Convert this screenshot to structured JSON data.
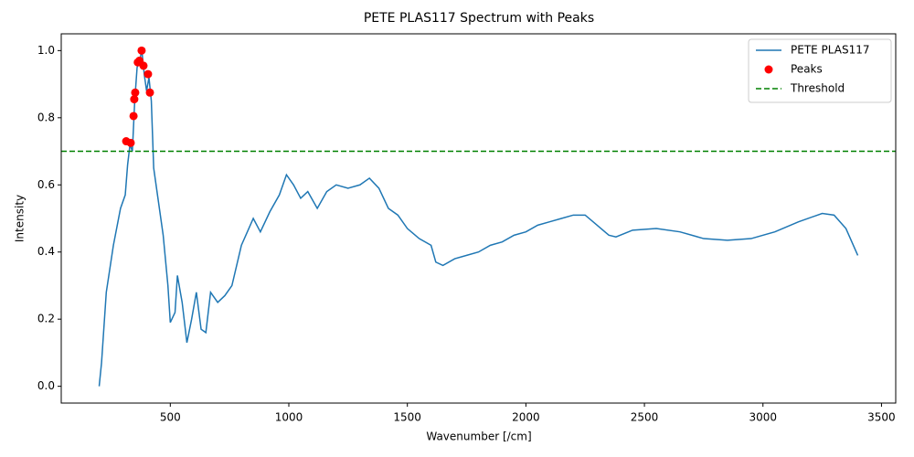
{
  "chart_data": {
    "type": "line",
    "title": "PETE PLAS117 Spectrum with Peaks",
    "xlabel": "Wavenumber [/cm]",
    "ylabel": "Intensity",
    "xlim": [
      40,
      3560
    ],
    "ylim": [
      -0.05,
      1.05
    ],
    "xticks": [
      500,
      1000,
      1500,
      2000,
      2500,
      3000,
      3500
    ],
    "yticks": [
      {
        "value": 0,
        "label": "0.0"
      },
      0.2,
      0.4,
      0.6,
      0.8,
      {
        "value": 1,
        "label": "1.0"
      }
    ],
    "legend": "upper right",
    "series": [
      {
        "name": "PETE PLAS117",
        "color": "#1f77b4",
        "x": [
          200,
          210,
          230,
          260,
          290,
          310,
          320,
          330,
          340,
          350,
          360,
          370,
          380,
          390,
          400,
          410,
          420,
          430,
          450,
          470,
          490,
          500,
          520,
          530,
          550,
          570,
          590,
          610,
          630,
          650,
          670,
          700,
          730,
          760,
          800,
          850,
          880,
          920,
          960,
          990,
          1020,
          1050,
          1080,
          1120,
          1160,
          1200,
          1250,
          1300,
          1340,
          1380,
          1420,
          1460,
          1500,
          1550,
          1600,
          1620,
          1650,
          1700,
          1750,
          1800,
          1850,
          1900,
          1950,
          2000,
          2050,
          2100,
          2150,
          2200,
          2250,
          2300,
          2350,
          2380,
          2450,
          2550,
          2650,
          2750,
          2850,
          2950,
          3050,
          3150,
          3250,
          3300,
          3350,
          3400
        ],
        "values": [
          0.0,
          0.07,
          0.28,
          0.42,
          0.53,
          0.57,
          0.66,
          0.72,
          0.7,
          0.85,
          0.95,
          0.97,
          1.0,
          0.93,
          0.88,
          0.92,
          0.85,
          0.65,
          0.55,
          0.45,
          0.3,
          0.19,
          0.22,
          0.33,
          0.25,
          0.13,
          0.2,
          0.28,
          0.17,
          0.16,
          0.28,
          0.25,
          0.27,
          0.3,
          0.42,
          0.5,
          0.46,
          0.52,
          0.57,
          0.63,
          0.6,
          0.56,
          0.58,
          0.53,
          0.58,
          0.6,
          0.59,
          0.6,
          0.62,
          0.59,
          0.53,
          0.51,
          0.47,
          0.44,
          0.42,
          0.37,
          0.36,
          0.38,
          0.39,
          0.4,
          0.42,
          0.43,
          0.45,
          0.46,
          0.48,
          0.49,
          0.5,
          0.51,
          0.51,
          0.48,
          0.45,
          0.445,
          0.465,
          0.47,
          0.46,
          0.44,
          0.435,
          0.44,
          0.46,
          0.49,
          0.515,
          0.51,
          0.47,
          0.39
        ]
      }
    ],
    "peaks": {
      "name": "Peaks",
      "color": "#ff0000",
      "x": [
        314,
        333,
        345,
        348,
        352,
        363,
        370,
        379,
        387,
        406,
        414
      ],
      "values": [
        0.73,
        0.725,
        0.805,
        0.855,
        0.875,
        0.965,
        0.97,
        1.0,
        0.955,
        0.93,
        0.875
      ]
    },
    "threshold": {
      "name": "Threshold",
      "color": "#008000",
      "value": 0.7
    }
  }
}
